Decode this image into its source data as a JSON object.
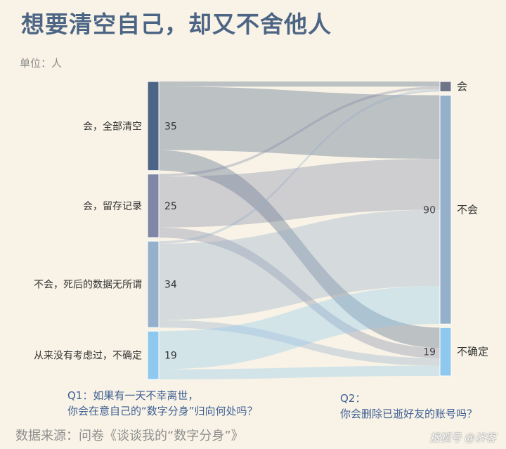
{
  "title": "想要清空自己，却又不舍他人",
  "unit_label": "单位：人",
  "q1": {
    "line1": "Q1：如果有一天不幸离世，",
    "line2": "你会在意自己的“数字分身”归向何处吗？"
  },
  "q2": {
    "line1": "Q2：",
    "line2": "你会删除已逝好友的账号吗？"
  },
  "source": "数据来源：问卷《谈谈我的“数字分身”》",
  "watermark": "搜狐号 @济客",
  "colors": {
    "background": "#f8f3e6",
    "title": "#4d6585",
    "question_text": "#3e5f94"
  },
  "chart_data": {
    "type": "sankey",
    "title": "想要清空自己，却又不舍他人",
    "unit": "单位：人",
    "left_nodes": [
      {
        "name": "会，全部清空",
        "value": 35,
        "color": "#4d6585"
      },
      {
        "name": "会，留存记录",
        "value": 25,
        "color": "#8086a6"
      },
      {
        "name": "不会，死后的数据无所谓",
        "value": 34,
        "color": "#94b0cb"
      },
      {
        "name": "从来没有考虑过，不确定",
        "value": 19,
        "color": "#8ec8ee"
      }
    ],
    "right_nodes": [
      {
        "name": "会",
        "value": 4,
        "color": "#6f7588"
      },
      {
        "name": "不会",
        "value": 90,
        "color": "#95b0cb"
      },
      {
        "name": "不确定",
        "value": 19,
        "color": "#8ec8ee"
      }
    ],
    "links": [
      {
        "source": 0,
        "target": 0,
        "value": 2
      },
      {
        "source": 0,
        "target": 1,
        "value": 25
      },
      {
        "source": 0,
        "target": 2,
        "value": 8
      },
      {
        "source": 1,
        "target": 0,
        "value": 1
      },
      {
        "source": 1,
        "target": 1,
        "value": 20
      },
      {
        "source": 1,
        "target": 2,
        "value": 4
      },
      {
        "source": 2,
        "target": 0,
        "value": 1
      },
      {
        "source": 2,
        "target": 1,
        "value": 30
      },
      {
        "source": 2,
        "target": 2,
        "value": 3
      },
      {
        "source": 3,
        "target": 1,
        "value": 15
      },
      {
        "source": 3,
        "target": 2,
        "value": 4
      }
    ]
  }
}
